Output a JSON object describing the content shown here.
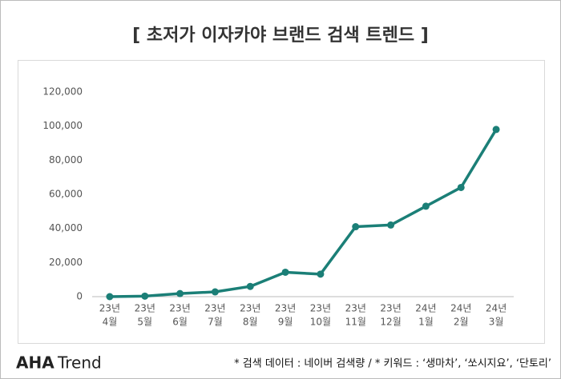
{
  "chart_data": {
    "type": "line",
    "title": "[ 초저가 이자카야 브랜드 검색 트렌드 ]",
    "categories": [
      [
        "23년",
        "4월"
      ],
      [
        "23년",
        "5월"
      ],
      [
        "23년",
        "6월"
      ],
      [
        "23년",
        "7월"
      ],
      [
        "23년",
        "8월"
      ],
      [
        "23년",
        "9월"
      ],
      [
        "23년",
        "10월"
      ],
      [
        "23년",
        "11월"
      ],
      [
        "23년",
        "12월"
      ],
      [
        "24년",
        "1월"
      ],
      [
        "24년",
        "2월"
      ],
      [
        "24년",
        "3월"
      ]
    ],
    "series": [
      {
        "name": null,
        "color": "#1b7f77",
        "values": [
          0,
          300,
          1800,
          2800,
          6000,
          14300,
          13200,
          41000,
          42000,
          53000,
          64000,
          98000
        ]
      }
    ],
    "ylim": [
      0,
      120000
    ],
    "yticks": [
      0,
      {
        "value": 20000,
        "label": "20,000"
      },
      {
        "value": 40000,
        "label": "40,000"
      },
      {
        "value": 60000,
        "label": "60,000"
      },
      {
        "value": 80000,
        "label": "80,000"
      },
      {
        "value": 100000,
        "label": "100,000"
      },
      {
        "value": 120000,
        "label": "120,000"
      }
    ],
    "grid": false
  },
  "footer": {
    "logo": "AHA",
    "logo_sub": "Trend",
    "note": "* 검색 데이터 : 네이버 검색량 / * 키워드 : ‘생마차’, ‘쏘시지요’, ‘단토리’"
  }
}
